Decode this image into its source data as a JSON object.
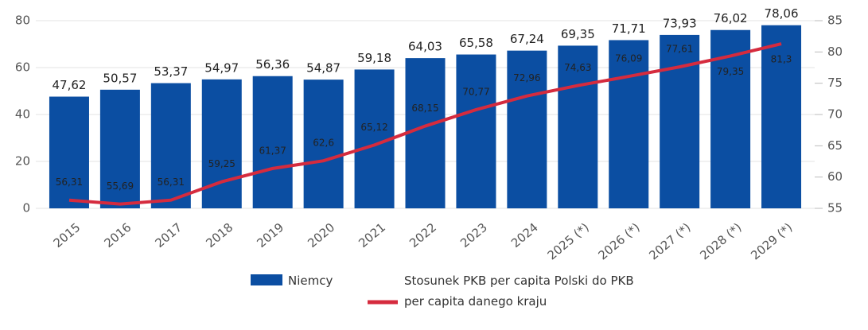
{
  "chart_data": {
    "type": "bar+line",
    "categories": [
      "2015",
      "2016",
      "2017",
      "2018",
      "2019",
      "2020",
      "2021",
      "2022",
      "2023",
      "2024",
      "2025 (*)",
      "2026 (*)",
      "2027 (*)",
      "2028 (*)",
      "2029 (*)"
    ],
    "series": [
      {
        "name": "Niemcy",
        "type": "bar",
        "color": "#0b4ea2",
        "values": [
          47.62,
          50.57,
          53.37,
          54.97,
          56.36,
          54.87,
          59.18,
          64.03,
          65.58,
          67.24,
          69.35,
          71.71,
          73.93,
          76.02,
          78.06
        ],
        "value_labels": [
          "47,62",
          "50,57",
          "53,37",
          "54,97",
          "56,36",
          "54,87",
          "59,18",
          "64,03",
          "65,58",
          "67,24",
          "69,35",
          "71,71",
          "73,93",
          "76,02",
          "78,06"
        ]
      },
      {
        "name": "Stosunek PKB per capita Polski do PKB per capita danego kraju",
        "type": "line",
        "axis": "y2",
        "color": "#d52b3e",
        "values": [
          56.31,
          55.69,
          56.31,
          59.25,
          61.37,
          62.6,
          65.12,
          68.15,
          70.77,
          72.96,
          74.63,
          76.09,
          77.61,
          79.35,
          81.3
        ],
        "value_labels": [
          "56,31",
          "55,69",
          "56,31",
          "59,25",
          "61,37",
          "62,6",
          "65,12",
          "68,15",
          "70,77",
          "72,96",
          "74,63",
          "76,09",
          "77,61",
          "79,35",
          "81,3"
        ]
      }
    ],
    "ylim": [
      0,
      80
    ],
    "yticks": [
      0,
      20,
      40,
      60,
      80
    ],
    "y2lim": [
      55,
      85
    ],
    "y2ticks": [
      55,
      60,
      65,
      70,
      75,
      80,
      85
    ],
    "grid": true
  }
}
